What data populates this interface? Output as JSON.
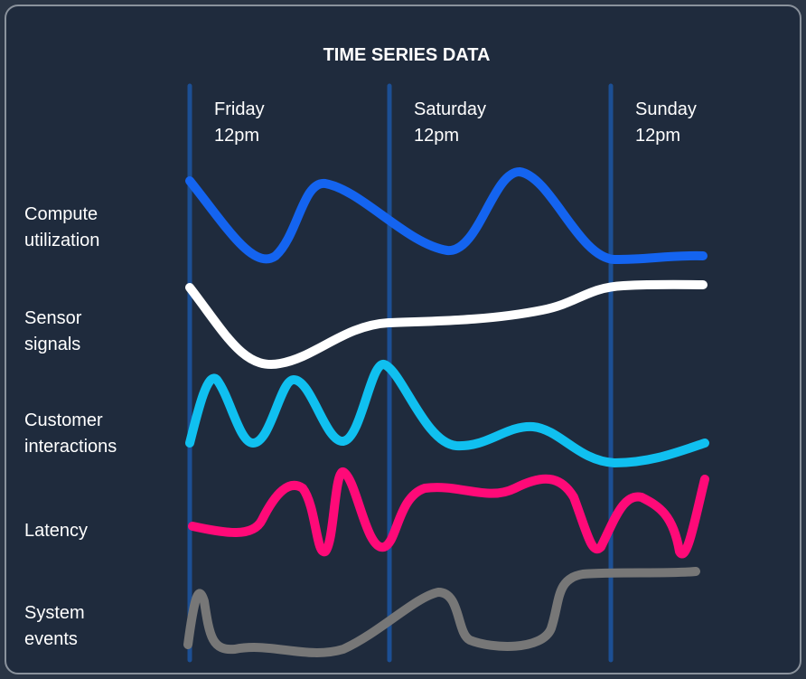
{
  "title": "TIME SERIES DATA",
  "columns": [
    {
      "day": "Friday",
      "time": "12pm"
    },
    {
      "day": "Saturday",
      "time": "12pm"
    },
    {
      "day": "Sunday",
      "time": "12pm"
    }
  ],
  "rows": [
    {
      "label": [
        "Compute",
        "utilization"
      ]
    },
    {
      "label": [
        "Sensor",
        "signals"
      ]
    },
    {
      "label": [
        "Customer",
        "interactions"
      ]
    },
    {
      "label": [
        "Latency"
      ]
    },
    {
      "label": [
        "System",
        "events"
      ]
    }
  ]
}
